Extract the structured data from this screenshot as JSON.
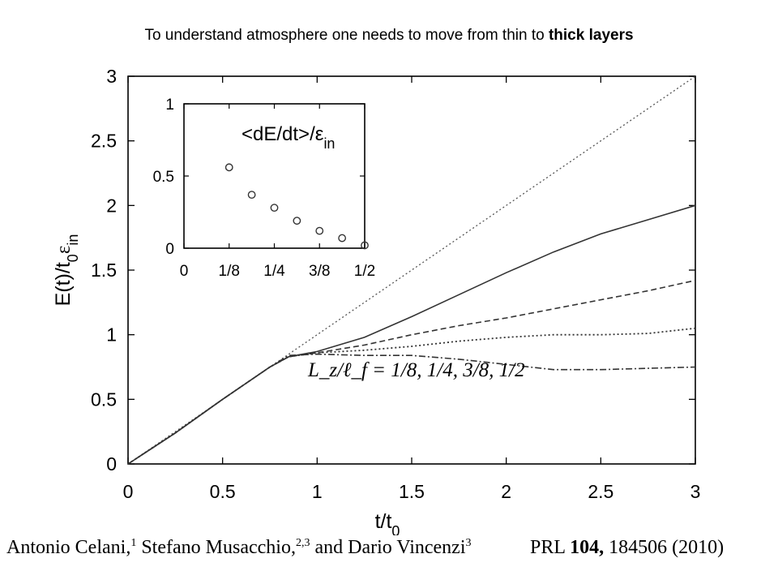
{
  "slide": {
    "title_prefix": "To understand atmosphere one needs to move from thin to ",
    "title_bold": "thick layers"
  },
  "chart_data": [
    {
      "type": "line",
      "xlabel": "t/t",
      "xlabel_sub": "0",
      "ylabel_main": "E(t)/t",
      "ylabel_sub": "0",
      "ylabel_eps": "ε",
      "ylabel_eps_sub": "in",
      "xlim": [
        0,
        3
      ],
      "ylim": [
        0,
        3
      ],
      "xticks": [
        "0",
        "0.5",
        "1",
        "1.5",
        "2",
        "2.5",
        "3"
      ],
      "yticks": [
        "0",
        "0.5",
        "1",
        "1.5",
        "2",
        "2.5",
        "3"
      ],
      "annotation": "L_z/ℓ_f = 1/8,  1/4,  3/8,  1/2",
      "series": [
        {
          "style": "dotted-reference",
          "x": [
            0,
            3
          ],
          "y": [
            0,
            3
          ]
        },
        {
          "style": "solid",
          "x": [
            0,
            0.25,
            0.5,
            0.75,
            0.85,
            1.0,
            1.25,
            1.5,
            1.75,
            2.0,
            2.25,
            2.5,
            2.75,
            3.0
          ],
          "y": [
            0,
            0.24,
            0.5,
            0.75,
            0.83,
            0.87,
            0.98,
            1.14,
            1.31,
            1.48,
            1.64,
            1.78,
            1.89,
            2.0
          ]
        },
        {
          "style": "dashed",
          "x": [
            0,
            0.25,
            0.5,
            0.75,
            0.85,
            1.0,
            1.25,
            1.5,
            1.75,
            2.0,
            2.25,
            2.5,
            2.75,
            3.0
          ],
          "y": [
            0,
            0.24,
            0.5,
            0.75,
            0.83,
            0.86,
            0.92,
            1.0,
            1.07,
            1.13,
            1.2,
            1.27,
            1.34,
            1.42
          ]
        },
        {
          "style": "dotted",
          "x": [
            0,
            0.25,
            0.5,
            0.75,
            0.85,
            1.0,
            1.25,
            1.5,
            1.75,
            2.0,
            2.25,
            2.5,
            2.75,
            3.0
          ],
          "y": [
            0,
            0.24,
            0.5,
            0.75,
            0.83,
            0.86,
            0.88,
            0.91,
            0.95,
            0.98,
            1.0,
            1.0,
            1.01,
            1.05
          ]
        },
        {
          "style": "dash-dot",
          "x": [
            0,
            0.25,
            0.5,
            0.75,
            0.85,
            1.0,
            1.25,
            1.5,
            1.75,
            2.0,
            2.25,
            2.5,
            2.75,
            3.0
          ],
          "y": [
            0,
            0.24,
            0.5,
            0.75,
            0.84,
            0.85,
            0.84,
            0.84,
            0.81,
            0.77,
            0.73,
            0.73,
            0.74,
            0.75
          ]
        }
      ]
    },
    {
      "type": "scatter",
      "ylabel": "<dE/dt>/ε",
      "ylabel_sub": "in",
      "xlim": [
        0,
        0.5
      ],
      "ylim": [
        0,
        1
      ],
      "xticks": [
        "0",
        "1/8",
        "1/4",
        "3/8",
        "1/2"
      ],
      "yticks": [
        "0",
        "0.5",
        "1"
      ],
      "x": [
        0.125,
        0.1875,
        0.25,
        0.3125,
        0.375,
        0.4375,
        0.5
      ],
      "y": [
        0.56,
        0.37,
        0.28,
        0.19,
        0.12,
        0.07,
        0.02
      ]
    }
  ],
  "citation": {
    "authors": "Antonio Celani,",
    "sup1": "1",
    "author2": " Stefano Musacchio,",
    "sup2": "2,3",
    "author3": " and Dario Vincenzi",
    "sup3": "3",
    "journal_prefix": "PRL ",
    "journal_volume": "104,",
    "journal_rest": " 184506 (2010)"
  }
}
